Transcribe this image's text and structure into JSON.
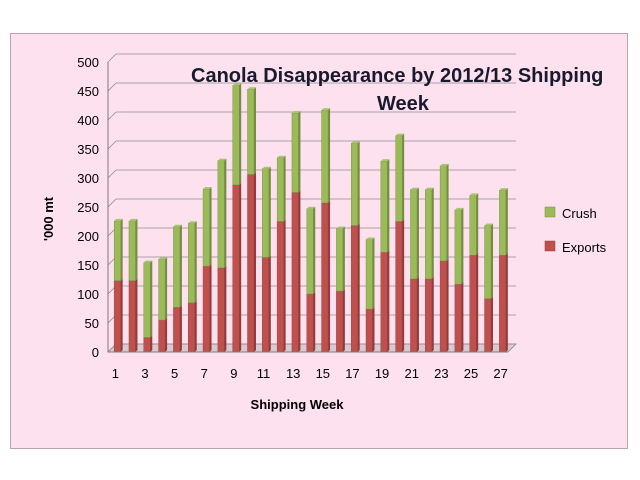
{
  "chart_data": {
    "type": "bar",
    "stacked": true,
    "title": "Canola Disappearance by 2012/13 Shipping Week",
    "xlabel": "Shipping Week",
    "ylabel": "'000 mt",
    "ylim": [
      0,
      500
    ],
    "ytick_step": 50,
    "grid": true,
    "legend_position": "right",
    "categories": [
      "1",
      "2",
      "3",
      "4",
      "5",
      "6",
      "7",
      "8",
      "9",
      "10",
      "11",
      "12",
      "13",
      "14",
      "15",
      "16",
      "17",
      "18",
      "19",
      "20",
      "21",
      "22",
      "23",
      "24",
      "25",
      "26",
      "27"
    ],
    "x_tick_labels": [
      "1",
      "3",
      "5",
      "7",
      "9",
      "11",
      "13",
      "15",
      "17",
      "19",
      "21",
      "23",
      "25",
      "27"
    ],
    "series": [
      {
        "name": "Exports",
        "color": "#c0504d",
        "values": [
          123,
          123,
          25,
          55,
          77,
          85,
          148,
          145,
          288,
          306,
          163,
          225,
          275,
          100,
          257,
          105,
          218,
          74,
          172,
          225,
          126,
          126,
          157,
          117,
          167,
          92,
          167
        ]
      },
      {
        "name": "Crush",
        "color": "#9bbb59",
        "values": [
          103,
          103,
          129,
          105,
          139,
          137,
          133,
          185,
          172,
          147,
          153,
          110,
          137,
          147,
          160,
          108,
          142,
          120,
          157,
          148,
          154,
          154,
          164,
          128,
          103,
          126,
          112
        ]
      }
    ],
    "legend_order": [
      "Crush",
      "Exports"
    ]
  }
}
